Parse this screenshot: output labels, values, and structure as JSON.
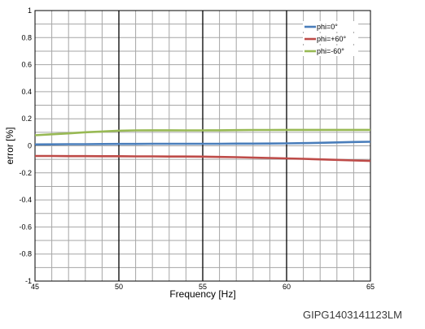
{
  "chart_data": {
    "type": "line",
    "xlabel": "Frequency [Hz]",
    "ylabel": "error [%]",
    "xlim": [
      45,
      65
    ],
    "ylim": [
      -1,
      1
    ],
    "x_ticks": [
      45,
      50,
      55,
      60,
      65
    ],
    "y_ticks": [
      1,
      0.8,
      0.6,
      0.4,
      0.2,
      0,
      -0.2,
      -0.4,
      -0.6,
      -0.8,
      -1
    ],
    "grid": true,
    "legend_position": "top-right",
    "series": [
      {
        "name": "phi=0°",
        "color": "#4a7ebb",
        "x": [
          45,
          46,
          47,
          48,
          49,
          50,
          51,
          52,
          53,
          54,
          55,
          56,
          57,
          58,
          59,
          60,
          61,
          62,
          63,
          64,
          65
        ],
        "y": [
          0.01,
          0.011,
          0.012,
          0.012,
          0.013,
          0.014,
          0.014,
          0.015,
          0.015,
          0.015,
          0.015,
          0.015,
          0.016,
          0.016,
          0.017,
          0.018,
          0.02,
          0.022,
          0.025,
          0.028,
          0.03
        ]
      },
      {
        "name": "phi=+60°",
        "color": "#be4b48",
        "x": [
          45,
          46,
          47,
          48,
          49,
          50,
          51,
          52,
          53,
          54,
          55,
          56,
          57,
          58,
          59,
          60,
          61,
          62,
          63,
          64,
          65
        ],
        "y": [
          -0.075,
          -0.075,
          -0.076,
          -0.076,
          -0.077,
          -0.077,
          -0.078,
          -0.078,
          -0.079,
          -0.079,
          -0.08,
          -0.082,
          -0.084,
          -0.087,
          -0.09,
          -0.093,
          -0.096,
          -0.1,
          -0.104,
          -0.108,
          -0.112
        ]
      },
      {
        "name": "phi=-60°",
        "color": "#98b954",
        "x": [
          45,
          46,
          47,
          48,
          49,
          50,
          51,
          52,
          53,
          54,
          55,
          56,
          57,
          58,
          59,
          60,
          61,
          62,
          63,
          64,
          65
        ],
        "y": [
          0.078,
          0.085,
          0.092,
          0.1,
          0.106,
          0.112,
          0.114,
          0.115,
          0.115,
          0.114,
          0.114,
          0.115,
          0.116,
          0.117,
          0.117,
          0.118,
          0.118,
          0.118,
          0.118,
          0.118,
          0.118
        ]
      }
    ]
  },
  "footer": {
    "code": "GIPG1403141123LM"
  }
}
